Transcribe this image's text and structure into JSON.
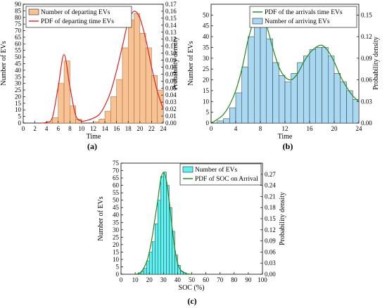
{
  "chart_data": [
    {
      "panel_label": "(a)",
      "type": "bar",
      "subtype": "histogram with PDF line",
      "xlabel": "Time",
      "ylabel": "Number of EVs",
      "y2label": "Probability density",
      "xlim": [
        0,
        24
      ],
      "xticks": [
        0,
        2,
        4,
        6,
        8,
        10,
        12,
        14,
        16,
        18,
        20,
        22,
        24
      ],
      "ylim": [
        0,
        90
      ],
      "yticks": [
        0,
        5,
        10,
        15,
        20,
        25,
        30,
        35,
        40,
        45,
        50,
        55,
        60,
        65,
        70,
        75,
        80,
        85,
        90
      ],
      "y2lim": [
        0,
        0.17
      ],
      "y2ticks": [
        0,
        0.01,
        0.02,
        0.03,
        0.04,
        0.05,
        0.06,
        0.07,
        0.08,
        0.09,
        0.1,
        0.11,
        0.12,
        0.13,
        0.14,
        0.15,
        0.16,
        0.17
      ],
      "bin_width": 1,
      "bins_start": [
        4,
        5,
        6,
        7,
        8,
        9,
        12,
        13,
        14,
        15,
        16,
        17,
        18,
        19,
        20,
        21,
        22,
        23
      ],
      "bin_values": [
        1,
        4,
        30,
        47,
        13,
        3,
        1,
        3,
        9,
        20,
        33,
        57,
        78,
        83,
        68,
        57,
        36,
        25
      ],
      "pdf_y2": [
        [
          3,
          0.0
        ],
        [
          4,
          0.001
        ],
        [
          5,
          0.008
        ],
        [
          6,
          0.052
        ],
        [
          7,
          0.098
        ],
        [
          8,
          0.052
        ],
        [
          9,
          0.011
        ],
        [
          10,
          0.003
        ],
        [
          11,
          0.004
        ],
        [
          12,
          0.007
        ],
        [
          13,
          0.012
        ],
        [
          14,
          0.025
        ],
        [
          15,
          0.045
        ],
        [
          16,
          0.075
        ],
        [
          17,
          0.11
        ],
        [
          18,
          0.145
        ],
        [
          19,
          0.16
        ],
        [
          20,
          0.15
        ],
        [
          21,
          0.12
        ],
        [
          22,
          0.08
        ],
        [
          23,
          0.045
        ],
        [
          24,
          0.02
        ]
      ],
      "legend": [
        {
          "label": "Number of departing EVs",
          "kind": "patch",
          "color": "#f8c394"
        },
        {
          "label": "PDF of departing time EVs",
          "kind": "line",
          "color": "#e02020"
        }
      ],
      "legend_position": "top-left"
    },
    {
      "panel_label": "(b)",
      "type": "bar",
      "subtype": "histogram with PDF line",
      "xlabel": "Time",
      "ylabel": "Number of EVs",
      "y2label": "Probability density",
      "xlim": [
        0,
        24
      ],
      "xticks": [
        0,
        4,
        8,
        12,
        16,
        20,
        24
      ],
      "ylim": [
        0,
        55
      ],
      "yticks": [
        0,
        5,
        10,
        15,
        20,
        25,
        30,
        35,
        40,
        45,
        50
      ],
      "y2lim": [
        0,
        0.165
      ],
      "y2ticks": [
        0.0,
        0.03,
        0.06,
        0.09,
        0.12,
        0.15
      ],
      "bin_width": 1,
      "bins_start": [
        1,
        2,
        3,
        4,
        5,
        6,
        7,
        8,
        9,
        10,
        11,
        12,
        13,
        14,
        15,
        16,
        17,
        18,
        19,
        20,
        21,
        22,
        23
      ],
      "bin_values": [
        1,
        2,
        7,
        14,
        26,
        40,
        50,
        49,
        39,
        28,
        22,
        19,
        23,
        28,
        31,
        34,
        35,
        35,
        31,
        23,
        19,
        15,
        11
      ],
      "pdf_y2": [
        [
          0,
          0.0
        ],
        [
          1,
          0.005
        ],
        [
          2,
          0.012
        ],
        [
          3,
          0.025
        ],
        [
          4,
          0.045
        ],
        [
          5,
          0.075
        ],
        [
          6,
          0.115
        ],
        [
          7,
          0.143
        ],
        [
          8,
          0.15
        ],
        [
          9,
          0.135
        ],
        [
          10,
          0.105
        ],
        [
          11,
          0.078
        ],
        [
          12,
          0.064
        ],
        [
          13,
          0.06
        ],
        [
          14,
          0.068
        ],
        [
          15,
          0.084
        ],
        [
          16,
          0.097
        ],
        [
          17,
          0.105
        ],
        [
          18,
          0.108
        ],
        [
          19,
          0.1
        ],
        [
          20,
          0.085
        ],
        [
          21,
          0.065
        ],
        [
          22,
          0.05
        ],
        [
          23,
          0.038
        ],
        [
          24,
          0.03
        ]
      ],
      "legend": [
        {
          "label": "PDF of the arrivals time EVs",
          "kind": "line",
          "color": "#1a8a1a"
        },
        {
          "label": "Number of arriving EVs",
          "kind": "patch",
          "color": "#a9d8f3"
        }
      ],
      "legend_position": "top-right"
    },
    {
      "panel_label": "(c)",
      "type": "bar",
      "subtype": "histogram with PDF line",
      "xlabel": "SOC (%)",
      "ylabel": "Number of EVs",
      "y2label": "Probability density",
      "xlim": [
        0,
        100
      ],
      "xticks": [
        0,
        10,
        20,
        30,
        40,
        50,
        60,
        70,
        80,
        90,
        100
      ],
      "ylim": [
        0,
        75
      ],
      "yticks": [
        0,
        5,
        10,
        15,
        20,
        25,
        30,
        35,
        40,
        45,
        50,
        55,
        60,
        65,
        70,
        75
      ],
      "y2lim": [
        0,
        0.3
      ],
      "y2ticks": [
        0.0,
        0.03,
        0.06,
        0.09,
        0.12,
        0.15,
        0.18,
        0.21,
        0.24,
        0.27
      ],
      "bin_width": 2,
      "bins_start": [
        12,
        14,
        16,
        18,
        20,
        22,
        24,
        26,
        28,
        30,
        32,
        34,
        36,
        38,
        40,
        42,
        44
      ],
      "bin_values": [
        1,
        2,
        4,
        9,
        15,
        22,
        34,
        50,
        66,
        69,
        60,
        45,
        29,
        13,
        6,
        2,
        1
      ],
      "pdf_y2": [
        [
          10,
          0.0
        ],
        [
          14,
          0.005
        ],
        [
          18,
          0.032
        ],
        [
          20,
          0.06
        ],
        [
          22,
          0.1
        ],
        [
          24,
          0.15
        ],
        [
          26,
          0.2
        ],
        [
          28,
          0.255
        ],
        [
          30,
          0.275
        ],
        [
          32,
          0.255
        ],
        [
          34,
          0.2
        ],
        [
          36,
          0.13
        ],
        [
          38,
          0.07
        ],
        [
          40,
          0.03
        ],
        [
          42,
          0.012
        ],
        [
          46,
          0.002
        ],
        [
          50,
          0.0
        ]
      ],
      "legend": [
        {
          "label": "Number of EVs",
          "kind": "patch",
          "color": "#5ef2f2"
        },
        {
          "label": "PDF of SOC on Arrival",
          "kind": "line",
          "color": "#1a8a1a"
        }
      ],
      "legend_position": "top-right"
    }
  ]
}
